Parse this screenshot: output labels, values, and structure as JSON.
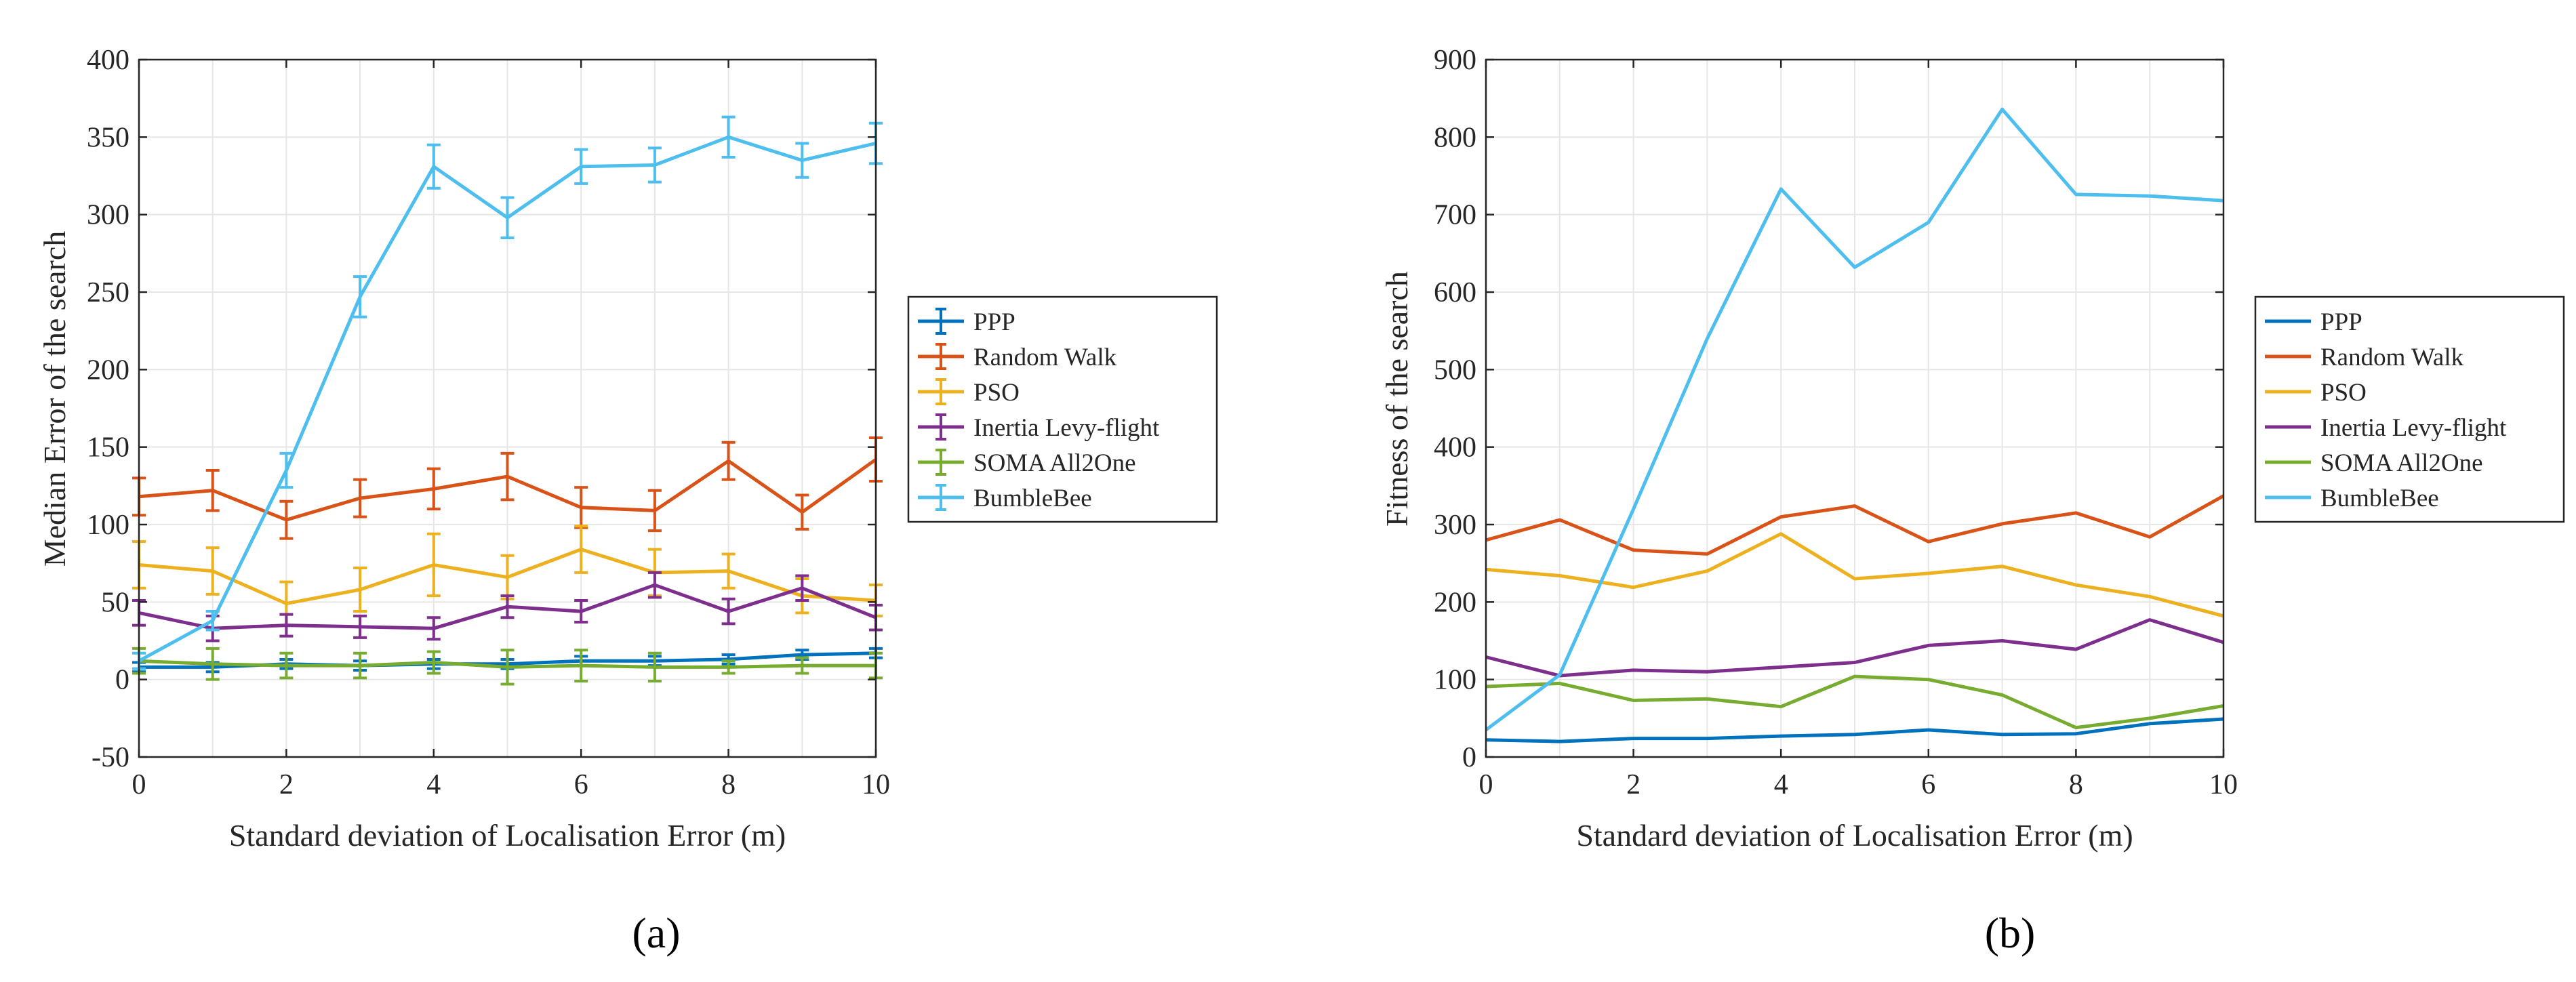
{
  "colors": {
    "PPP": "#0072BD",
    "Random Walk": "#D95319",
    "PSO": "#EDB120",
    "Inertia Levy-flight": "#7E2F8E",
    "SOMA All2One": "#77AC30",
    "BumbleBee": "#4DBEEE",
    "grid": "#e6e6e6",
    "axis": "#262626"
  },
  "chart_data": [
    {
      "type": "line",
      "panel_label": "(a)",
      "title": "",
      "xlabel": "Standard deviation of Localisation Error (m)",
      "ylabel": "Median Error of the search",
      "xlim": [
        0,
        10
      ],
      "ylim": [
        -50,
        400
      ],
      "xticks": [
        0,
        2,
        4,
        6,
        8,
        10
      ],
      "yticks": [
        -50,
        0,
        50,
        100,
        150,
        200,
        250,
        300,
        350,
        400
      ],
      "grid": true,
      "error_bars": true,
      "legend_position": "right",
      "x": [
        0,
        1,
        2,
        3,
        4,
        5,
        6,
        7,
        8,
        9,
        10
      ],
      "series": [
        {
          "name": "PPP",
          "values": [
            8,
            8,
            10,
            9,
            10,
            10,
            12,
            12,
            13,
            16,
            17
          ],
          "errors": [
            3,
            3,
            3,
            3,
            3,
            3,
            3,
            3,
            3,
            3,
            3
          ]
        },
        {
          "name": "Random Walk",
          "values": [
            118,
            122,
            103,
            117,
            123,
            131,
            111,
            109,
            141,
            108,
            142
          ],
          "errors": [
            12,
            13,
            12,
            12,
            13,
            15,
            13,
            13,
            12,
            11,
            14
          ]
        },
        {
          "name": "PSO",
          "values": [
            74,
            70,
            49,
            58,
            74,
            66,
            84,
            69,
            70,
            54,
            51
          ],
          "errors": [
            15,
            15,
            14,
            14,
            20,
            14,
            15,
            15,
            11,
            11,
            10
          ]
        },
        {
          "name": "Inertia Levy-flight",
          "values": [
            43,
            33,
            35,
            34,
            33,
            47,
            44,
            61,
            44,
            59,
            40
          ],
          "errors": [
            8,
            8,
            7,
            7,
            7,
            7,
            7,
            8,
            8,
            8,
            8
          ]
        },
        {
          "name": "SOMA All2One",
          "values": [
            12,
            10,
            9,
            9,
            11,
            8,
            9,
            8,
            8,
            9,
            9
          ],
          "errors": [
            8,
            10,
            8,
            8,
            7,
            11,
            10,
            9,
            4,
            5,
            8
          ]
        },
        {
          "name": "BumbleBee",
          "values": [
            12,
            38,
            135,
            247,
            331,
            298,
            331,
            332,
            350,
            335,
            346
          ],
          "errors": [
            5,
            6,
            11,
            13,
            14,
            13,
            11,
            11,
            13,
            11,
            13
          ]
        }
      ]
    },
    {
      "type": "line",
      "panel_label": "(b)",
      "title": "",
      "xlabel": "Standard deviation of Localisation Error (m)",
      "ylabel": "Fitness of the search",
      "xlim": [
        0,
        10
      ],
      "ylim": [
        0,
        900
      ],
      "xticks": [
        0,
        2,
        4,
        6,
        8,
        10
      ],
      "yticks": [
        0,
        100,
        200,
        300,
        400,
        500,
        600,
        700,
        800,
        900
      ],
      "grid": true,
      "error_bars": false,
      "legend_position": "right",
      "x": [
        0,
        1,
        2,
        3,
        4,
        5,
        6,
        7,
        8,
        9,
        10
      ],
      "series": [
        {
          "name": "PPP",
          "values": [
            22,
            20,
            24,
            24,
            27,
            29,
            35,
            29,
            30,
            43,
            49
          ]
        },
        {
          "name": "Random Walk",
          "values": [
            280,
            306,
            267,
            262,
            310,
            324,
            278,
            301,
            315,
            284,
            337
          ]
        },
        {
          "name": "PSO",
          "values": [
            242,
            234,
            219,
            240,
            288,
            230,
            237,
            246,
            222,
            207,
            182
          ]
        },
        {
          "name": "Inertia Levy-flight",
          "values": [
            129,
            105,
            112,
            110,
            116,
            122,
            144,
            150,
            139,
            177,
            148
          ]
        },
        {
          "name": "SOMA All2One",
          "values": [
            91,
            95,
            73,
            75,
            65,
            104,
            100,
            80,
            38,
            50,
            66
          ]
        },
        {
          "name": "BumbleBee",
          "values": [
            35,
            106,
            320,
            540,
            733,
            632,
            690,
            836,
            726,
            724,
            718
          ]
        }
      ]
    }
  ]
}
